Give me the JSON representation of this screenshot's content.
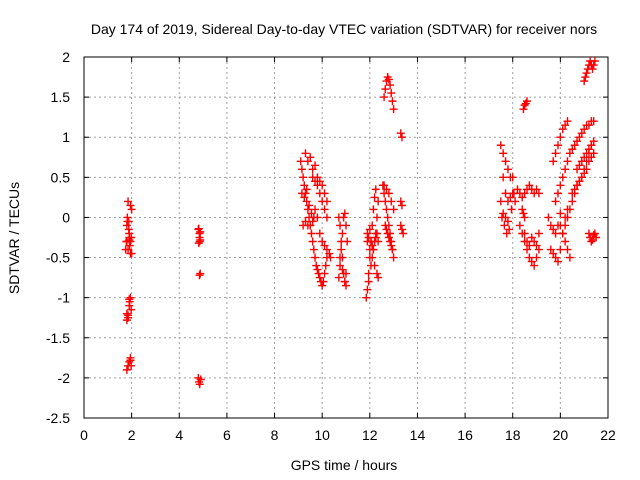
{
  "chart_data": {
    "type": "scatter",
    "title": "Day 174 of 2019, Sidereal Day-to-day VTEC variation (SDTVAR) for receiver nors",
    "xlabel": "GPS time / hours",
    "ylabel": "SDTVAR / TECUs",
    "xlim": [
      0,
      22
    ],
    "ylim": [
      -2.5,
      2
    ],
    "x_ticks": [
      "0",
      "2",
      "4",
      "6",
      "8",
      "10",
      "12",
      "14",
      "16",
      "18",
      "20",
      "22"
    ],
    "y_ticks": [
      "-2.5",
      "-2",
      "-1.5",
      "-1",
      "-0.5",
      "0",
      "0.5",
      "1",
      "1.5",
      "2"
    ],
    "grid": true,
    "marker": "+",
    "marker_color": "#ff0000",
    "series": [
      {
        "name": "SDTVAR",
        "x": [
          1.75,
          1.78,
          1.8,
          1.82,
          1.85,
          1.88,
          1.9,
          1.92,
          1.95,
          1.98,
          2.0,
          1.8,
          1.85,
          1.9,
          1.92,
          1.95,
          1.98,
          1.8,
          1.85,
          1.9,
          1.95,
          1.98,
          1.9,
          1.95,
          2.0,
          1.82,
          1.88,
          1.95,
          1.8,
          1.85,
          1.9,
          1.95,
          1.8,
          1.85,
          1.9,
          4.8,
          4.85,
          4.88,
          4.82,
          4.85,
          4.88,
          4.8,
          4.83,
          4.86,
          4.9,
          4.85,
          4.88,
          4.82,
          4.86,
          9.1,
          9.15,
          9.2,
          9.25,
          9.3,
          9.35,
          9.4,
          9.45,
          9.5,
          9.55,
          9.6,
          9.65,
          9.7,
          9.75,
          9.8,
          9.85,
          9.9,
          9.95,
          10.0,
          10.05,
          10.1,
          10.15,
          10.2,
          9.3,
          9.4,
          9.5,
          9.6,
          9.7,
          9.8,
          9.9,
          10.0,
          10.1,
          10.2,
          9.6,
          9.7,
          9.8,
          9.9,
          10.0,
          10.1,
          10.2,
          9.2,
          9.3,
          9.4,
          9.5,
          9.6,
          9.7,
          9.8,
          9.9,
          10.0,
          10.1,
          10.2,
          10.3,
          10.35,
          9.15,
          9.25,
          9.35,
          9.45,
          9.55,
          9.65,
          10.7,
          10.75,
          10.8,
          10.85,
          10.9,
          10.95,
          11.0,
          10.7,
          10.75,
          10.8,
          10.85,
          10.9,
          10.95,
          11.0,
          11.05,
          10.75,
          10.85,
          10.95,
          11.0,
          11.85,
          11.9,
          11.95,
          12.0,
          12.05,
          12.1,
          12.15,
          12.2,
          12.25,
          11.9,
          12.0,
          12.1,
          12.2,
          12.3,
          12.35,
          11.95,
          12.05,
          12.15,
          12.25,
          12.3,
          12.35,
          11.9,
          11.95,
          12.0,
          12.05,
          12.1,
          12.15,
          12.2,
          12.25,
          12.3,
          12.35,
          12.6,
          12.65,
          12.7,
          12.75,
          12.8,
          12.85,
          12.9,
          12.95,
          13.0,
          12.55,
          12.6,
          12.65,
          12.7,
          12.75,
          12.8,
          12.85,
          12.9,
          12.95,
          13.0,
          12.6,
          12.7,
          12.8,
          12.9,
          13.0,
          12.65,
          12.7,
          12.75,
          12.8,
          12.85,
          12.9,
          12.95,
          13.3,
          13.35,
          13.3,
          13.35,
          13.3,
          13.35,
          13.4,
          17.5,
          17.6,
          17.7,
          17.8,
          17.9,
          18.0,
          18.1,
          17.55,
          17.65,
          17.75,
          17.85,
          17.95,
          18.05,
          17.6,
          17.7,
          17.8,
          17.9,
          18.0,
          17.5,
          17.6,
          17.7,
          17.8,
          18.2,
          18.3,
          18.4,
          18.5,
          18.6,
          18.7,
          18.8,
          18.9,
          19.0,
          19.1,
          18.3,
          18.4,
          18.5,
          18.6,
          18.7,
          18.8,
          18.9,
          19.0,
          19.1,
          18.5,
          18.6,
          18.7,
          18.8,
          18.9,
          19.0,
          19.1,
          18.45,
          18.5,
          18.55,
          18.6,
          18.4,
          18.45,
          18.5,
          19.6,
          19.7,
          19.8,
          19.9,
          20.0,
          20.1,
          20.2,
          20.3,
          19.7,
          19.8,
          19.9,
          20.0,
          20.1,
          20.2,
          20.3,
          19.8,
          19.9,
          20.0,
          20.1,
          20.2,
          20.3,
          20.4,
          20.5,
          20.6,
          20.7,
          20.8,
          20.9,
          21.0,
          21.1,
          21.2,
          21.3,
          21.4,
          20.0,
          20.1,
          20.2,
          20.3,
          20.4,
          20.5,
          20.6,
          20.7,
          20.8,
          20.9,
          21.0,
          21.1,
          21.2,
          21.3,
          20.5,
          20.6,
          20.7,
          20.8,
          20.9,
          21.0,
          21.1,
          21.2,
          21.3,
          21.4,
          20.7,
          20.8,
          20.9,
          21.0,
          21.1,
          21.2,
          21.3,
          21.4,
          21.0,
          21.05,
          21.1,
          21.15,
          21.2,
          21.25,
          21.3,
          21.35,
          21.4,
          21.45,
          21.2,
          21.25,
          21.3,
          21.35,
          21.4,
          21.45,
          21.5,
          19.5,
          19.6,
          19.7,
          19.8,
          19.9,
          20.0,
          20.2,
          20.3,
          20.4
        ],
        "y": [
          -0.4,
          -0.3,
          -0.1,
          0.0,
          0.2,
          -0.05,
          -0.2,
          -0.35,
          -0.45,
          -0.25,
          0.1,
          -1.2,
          -1.25,
          -1.1,
          -1.05,
          -1.0,
          -1.15,
          -1.9,
          -1.85,
          -1.8,
          -1.75,
          -1.85,
          -0.25,
          -0.3,
          -0.45,
          -0.05,
          -0.15,
          0.15,
          -0.3,
          -0.4,
          -0.28,
          -1.78,
          -1.28,
          -1.22,
          -1.02,
          -0.15,
          -0.2,
          -0.28,
          -0.32,
          -0.72,
          -0.7,
          -2.0,
          -2.05,
          -2.08,
          -2.02,
          -0.25,
          -0.18,
          -0.14,
          -0.3,
          0.7,
          0.6,
          0.5,
          0.4,
          0.3,
          0.2,
          0.1,
          0.0,
          -0.1,
          -0.2,
          -0.3,
          -0.4,
          -0.5,
          -0.6,
          -0.65,
          -0.7,
          -0.75,
          -0.8,
          -0.85,
          -0.8,
          -0.7,
          -0.6,
          -0.5,
          0.8,
          0.7,
          0.75,
          0.6,
          0.65,
          0.5,
          0.45,
          0.4,
          0.3,
          0.2,
          0.5,
          0.45,
          0.4,
          0.3,
          0.2,
          0.1,
          0.0,
          -0.1,
          -0.05,
          -0.1,
          -0.1,
          -0.05,
          0.1,
          0.0,
          -0.2,
          -0.3,
          -0.35,
          -0.4,
          -0.45,
          -0.5,
          0.3,
          0.25,
          0.35,
          0.15,
          0.05,
          0.0,
          0.0,
          -0.1,
          -0.3,
          -0.5,
          -0.7,
          -0.8,
          -0.85,
          -0.75,
          -0.6,
          -0.4,
          -0.2,
          0.0,
          0.05,
          -0.1,
          -0.3,
          -0.5,
          -0.65,
          -0.8,
          -0.7,
          -1.0,
          -0.9,
          -0.7,
          -0.5,
          -0.3,
          -0.1,
          0.1,
          0.25,
          0.35,
          -0.3,
          -0.4,
          -0.5,
          -0.6,
          -0.7,
          -0.75,
          -0.8,
          -0.6,
          -0.4,
          -0.2,
          0.0,
          0.2,
          -0.2,
          -0.25,
          -0.15,
          -0.3,
          -0.35,
          -0.4,
          -0.3,
          -0.25,
          -0.2,
          -0.3,
          1.5,
          1.6,
          1.7,
          1.75,
          1.72,
          1.65,
          1.55,
          1.45,
          1.35,
          0.4,
          0.3,
          0.2,
          0.1,
          0.0,
          -0.1,
          -0.2,
          -0.3,
          -0.4,
          -0.5,
          0.4,
          0.35,
          0.3,
          0.2,
          0.1,
          -0.1,
          -0.15,
          -0.2,
          -0.25,
          -0.3,
          -0.35,
          -0.4,
          1.05,
          1.0,
          0.2,
          0.15,
          -0.1,
          -0.15,
          -0.2,
          0.9,
          0.8,
          0.7,
          0.6,
          0.5,
          0.3,
          0.2,
          0.0,
          -0.1,
          -0.2,
          -0.15,
          0.1,
          0.3,
          0.5,
          0.3,
          0.2,
          0.25,
          0.5,
          0.2,
          0.05,
          0.0,
          -0.05,
          0.35,
          0.3,
          0.25,
          0.3,
          0.35,
          0.4,
          0.35,
          0.3,
          0.35,
          0.3,
          -0.1,
          -0.2,
          -0.3,
          -0.4,
          -0.5,
          -0.55,
          -0.6,
          -0.5,
          -0.4,
          -0.2,
          -0.3,
          -0.35,
          -0.25,
          -0.3,
          -0.35,
          -0.2,
          1.35,
          1.4,
          1.42,
          1.45,
          0.1,
          0.05,
          0.0,
          -0.4,
          -0.45,
          -0.5,
          -0.55,
          -0.4,
          -0.2,
          0.0,
          0.1,
          0.7,
          0.8,
          0.9,
          1.0,
          1.1,
          1.15,
          1.2,
          0.2,
          0.3,
          0.4,
          0.5,
          0.6,
          0.7,
          0.8,
          0.85,
          0.9,
          0.95,
          1.0,
          1.05,
          1.1,
          1.15,
          1.15,
          1.2,
          1.2,
          -0.1,
          -0.2,
          -0.1,
          0.0,
          0.1,
          0.2,
          0.3,
          0.4,
          0.45,
          0.5,
          0.6,
          0.7,
          0.8,
          0.9,
          0.3,
          0.35,
          0.4,
          0.45,
          0.5,
          0.55,
          0.6,
          0.7,
          0.75,
          0.8,
          0.6,
          0.65,
          0.7,
          0.75,
          0.8,
          0.85,
          0.9,
          0.95,
          1.7,
          1.75,
          1.8,
          1.85,
          1.9,
          1.95,
          1.9,
          1.85,
          1.9,
          1.95,
          -0.2,
          -0.25,
          -0.3,
          -0.28,
          -0.22,
          -0.2,
          -0.25,
          0.0,
          -0.1,
          -0.15,
          -0.2,
          -0.1,
          0.05,
          -0.3,
          -0.4,
          -0.5
        ]
      }
    ]
  }
}
